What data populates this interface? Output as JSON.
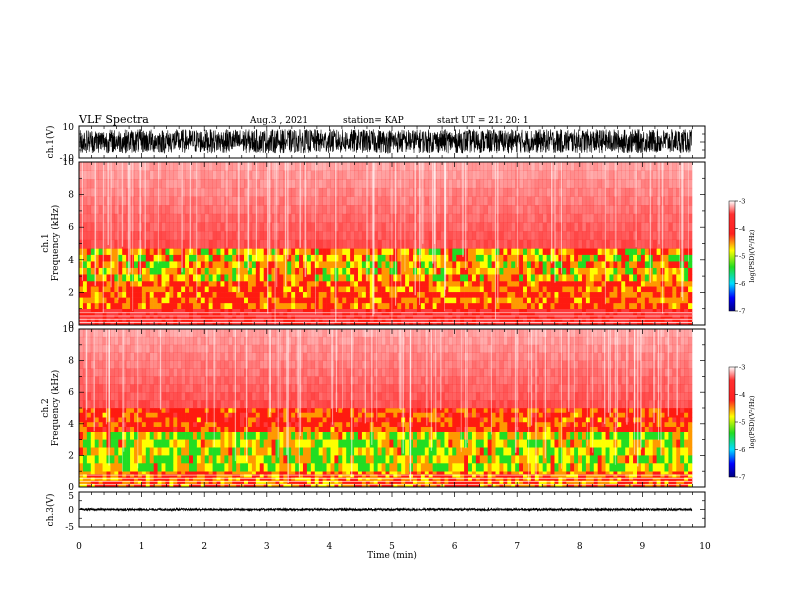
{
  "header": {
    "title": "VLF Spectra",
    "date": "Aug.3  , 2021",
    "station": "station= KAP",
    "start": "start  UT  =    21: 20: 1"
  },
  "chart_data": [
    {
      "type": "line",
      "panel": "waveform-ch1",
      "ylabel": "ch.1(V)",
      "ylim": [
        -10,
        10
      ],
      "yticks": [
        "10",
        "-10"
      ],
      "xlim": [
        0,
        10
      ],
      "x_unit": "min",
      "typical_range": [
        -7,
        8
      ]
    },
    {
      "type": "heatmap",
      "panel": "spectrogram-ch1",
      "ylabel": "ch.1\nFrequency  (kHz)",
      "ylim": [
        0,
        10
      ],
      "yticks": [
        "0",
        "2",
        "4",
        "6",
        "8",
        "10"
      ],
      "xlim": [
        0,
        10
      ],
      "colorbar": {
        "label": "log(PSD)(V²/Hz)",
        "range": [
          -7,
          -3
        ],
        "ticks": [
          "-3",
          "-4",
          "-5",
          "-6",
          "-7"
        ]
      },
      "bands": [
        {
          "from_khz": 0,
          "to_khz": 1.0,
          "level": -3.5,
          "note": "red with white harmonic lines"
        },
        {
          "from_khz": 1.0,
          "to_khz": 2.7,
          "level": -4.2,
          "note": "red-yellow"
        },
        {
          "from_khz": 2.7,
          "to_khz": 4.7,
          "level": -4.6,
          "note": "yellow-green patches"
        },
        {
          "from_khz": 4.7,
          "to_khz": 10,
          "level": -3.3,
          "note": "red speckle on white"
        }
      ]
    },
    {
      "type": "heatmap",
      "panel": "spectrogram-ch2",
      "ylabel": "ch.2\nFrequency  (kHz)",
      "ylim": [
        0,
        10
      ],
      "yticks": [
        "0",
        "2",
        "4",
        "6",
        "8",
        "10"
      ],
      "xlim": [
        0,
        10
      ],
      "colorbar": {
        "label": "log(PSD)(V²/Hz)",
        "range": [
          -7,
          -3
        ],
        "ticks": [
          "-3",
          "-4",
          "-5",
          "-6",
          "-7"
        ]
      },
      "bands": [
        {
          "from_khz": 0,
          "to_khz": 1.0,
          "level": -4.3,
          "note": "yellow-green"
        },
        {
          "from_khz": 1.0,
          "to_khz": 3.5,
          "level": -4.8,
          "note": "green-yellow"
        },
        {
          "from_khz": 3.5,
          "to_khz": 5.0,
          "level": -4.1,
          "note": "red-yellow"
        },
        {
          "from_khz": 5.0,
          "to_khz": 10,
          "level": -3.3,
          "note": "red speckle on white"
        }
      ]
    },
    {
      "type": "line",
      "panel": "waveform-ch3",
      "ylabel": "ch.3(V)",
      "ylim": [
        -5,
        5
      ],
      "yticks": [
        "5",
        "0",
        "-5"
      ],
      "xlim": [
        0,
        10
      ],
      "xlabel": "Time  (min)",
      "xticks": [
        "0",
        "1",
        "2",
        "3",
        "4",
        "5",
        "6",
        "7",
        "8",
        "9",
        "10"
      ],
      "typical_range": [
        -0.3,
        0.3
      ]
    }
  ],
  "colors": {
    "spec_high": "#ff2a2a",
    "spec_mid": "#ffff00",
    "spec_low": "#22dd22",
    "trace": "#000000"
  }
}
